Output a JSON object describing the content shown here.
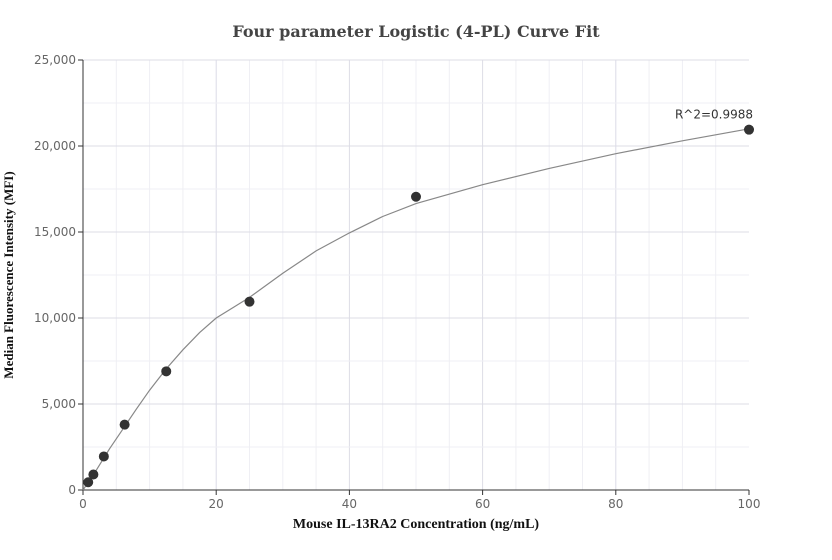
{
  "chart_data": {
    "type": "scatter",
    "title": "Four parameter Logistic (4-PL) Curve Fit",
    "xlabel": "Mouse IL-13RA2 Concentration (ng/mL)",
    "ylabel": "Median Fluorescence Intensity (MFI)",
    "xlim": [
      0,
      100
    ],
    "ylim": [
      0,
      25000
    ],
    "x_ticks": [
      0,
      20,
      40,
      60,
      80,
      100
    ],
    "y_ticks": [
      0,
      5000,
      10000,
      15000,
      20000,
      25000
    ],
    "x_tick_labels": [
      "0",
      "20",
      "40",
      "60",
      "80",
      "100"
    ],
    "y_tick_labels": [
      "0",
      "5,000",
      "10,000",
      "15,000",
      "20,000",
      "25,000"
    ],
    "grid": true,
    "series": [
      {
        "kind": "points",
        "x": [
          0.78,
          1.56,
          3.13,
          6.25,
          12.5,
          25,
          50,
          100
        ],
        "y": [
          450,
          900,
          1950,
          3800,
          6900,
          10950,
          17050,
          20950
        ]
      },
      {
        "kind": "fit-curve",
        "x": [
          0,
          2,
          4,
          6,
          8,
          10,
          12.5,
          15,
          17.5,
          20,
          22.5,
          25,
          30,
          35,
          40,
          45,
          50,
          60,
          70,
          80,
          90,
          100
        ],
        "y": [
          0,
          1150,
          2400,
          3550,
          4700,
          5800,
          7050,
          8150,
          9150,
          10000,
          10600,
          11200,
          12600,
          13900,
          14950,
          15900,
          16650,
          17750,
          18700,
          19550,
          20300,
          21000
        ]
      }
    ],
    "annotations": [
      {
        "text": "R^2=0.9988",
        "x": 100,
        "y": 20950
      }
    ],
    "colors": {
      "points": "#333333",
      "curve": "#888888",
      "grid": "#e6e6ec",
      "axis": "#333333"
    }
  }
}
